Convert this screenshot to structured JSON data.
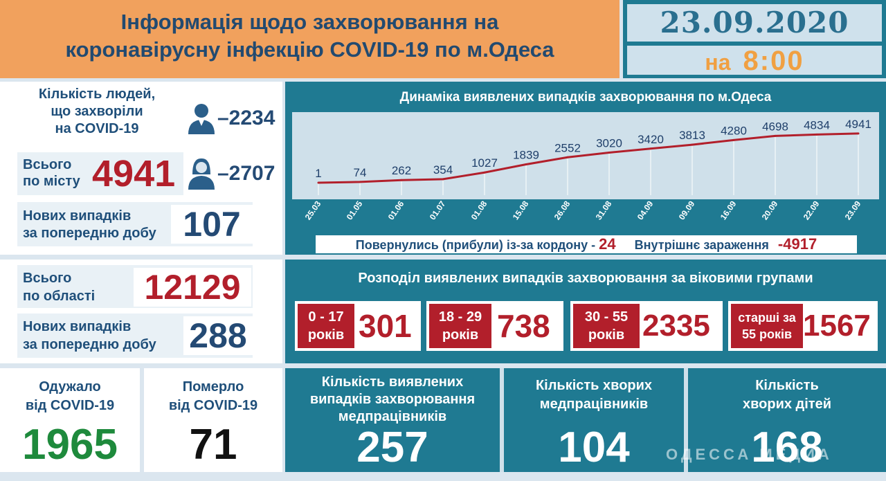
{
  "header": {
    "title_line1": "Інформація щодо захворювання на",
    "title_line2": "коронавірусну інфекцію COVID-19 по м.Одеса",
    "date": "23.09.2020",
    "at_label": "на",
    "time": "8:00"
  },
  "city": {
    "sick_label_1": "Кількість людей,",
    "sick_label_2": "що захворіли",
    "sick_label_3": "на COVID-19",
    "male_icon": "man-icon",
    "female_icon": "woman-icon",
    "male_count": "–2234",
    "female_count": "–2707",
    "total_label_1": "Всього",
    "total_label_2": "по місту",
    "total": "4941",
    "new_label_1": "Нових випадків",
    "new_label_2": "за попередню добу",
    "new_cases": "107"
  },
  "region": {
    "total_label_1": "Всього",
    "total_label_2": "по області",
    "total": "12129",
    "new_label_1": "Нових випадків",
    "new_label_2": "за попередню добу",
    "new_cases": "288"
  },
  "chart_data": {
    "type": "line",
    "title": "Динаміка виявлених випадків захворювання по м.Одеса",
    "categories": [
      "25.03",
      "01.05",
      "01.06",
      "01.07",
      "01.08",
      "15.08",
      "26.08",
      "31.08",
      "04.09",
      "09.09",
      "16.09",
      "20.09",
      "22.09",
      "23.09"
    ],
    "values": [
      1,
      74,
      262,
      354,
      1027,
      1839,
      2552,
      3020,
      3420,
      3813,
      4280,
      4698,
      4834,
      4941
    ],
    "labels": [
      "1",
      "74",
      "262",
      "354",
      "1027",
      "1839",
      "2552",
      "3020",
      "3420",
      "3813",
      "4280",
      "4698",
      "4834",
      "4941"
    ],
    "ylim": [
      0,
      5000
    ],
    "line_color": "#b21f2b",
    "grid": "vertical"
  },
  "origin": {
    "returned_label": "Повернулись (прибули) із-за кордону -",
    "returned": "24",
    "local_label": "Внутрішнє зараження",
    "local": "-4917"
  },
  "age_groups": {
    "title": "Розподіл виявлених випадків захворювання за віковими групами",
    "groups": [
      {
        "label_1": "0 - 17",
        "label_2": "років",
        "value": "301"
      },
      {
        "label_1": "18 - 29",
        "label_2": "років",
        "value": "738"
      },
      {
        "label_1": "30 - 55",
        "label_2": "років",
        "value": "2335"
      },
      {
        "label_1": "старші за",
        "label_2": "55 років",
        "value": "1567"
      }
    ]
  },
  "bottom": {
    "recovered_label_1": "Одужало",
    "recovered_label_2": "від COVID-19",
    "recovered": "1965",
    "died_label_1": "Померло",
    "died_label_2": "від COVID-19",
    "died": "71",
    "medical_label_1": "Кількість виявлених",
    "medical_label_2": "випадків захворювання",
    "medical_label_3": "медпрацівників",
    "medical": "257",
    "sick_medical_label_1": "Кількість хворих",
    "sick_medical_label_2": "медпрацівників",
    "sick_medical": "104",
    "children_label_1": "Кількість",
    "children_label_2": "хворих дітей",
    "children": "168",
    "watermark": "ОДЕССА МЕДИА"
  },
  "colors": {
    "teal": "#1f7a92",
    "orange": "#f1a15d",
    "red": "#b21f2b",
    "navy": "#244a74",
    "green": "#1e8a3c"
  }
}
